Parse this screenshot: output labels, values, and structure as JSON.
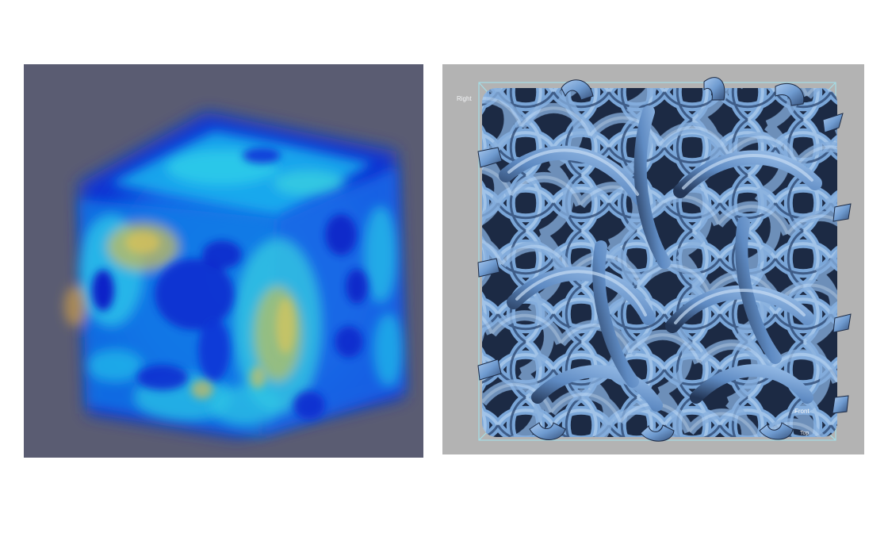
{
  "figure": {
    "left_panel": {
      "icon": "volume-render-density-cube",
      "colors": {
        "background": "#5a5c72",
        "low": "#0a2dd8",
        "mid": "#0fa6ee",
        "high": "#d6c052"
      }
    },
    "right_panel": {
      "icon": "gyroid-lattice-surface-render",
      "colors": {
        "background": "#b3b3b3",
        "surface": "#7aa6d8",
        "shadow": "#17233a",
        "bounding_box": "#9fd9e3"
      },
      "labels": {
        "right": "Right",
        "front": "Front",
        "top": "Top"
      }
    }
  }
}
